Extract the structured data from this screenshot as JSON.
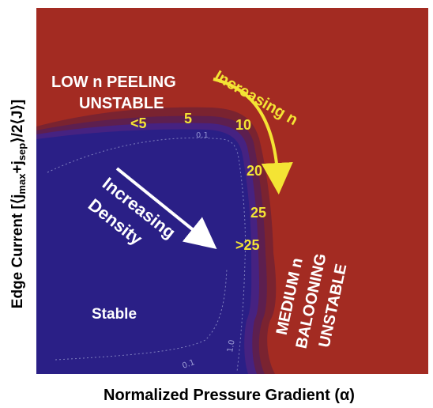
{
  "chart_data": {
    "type": "heatmap",
    "title": "",
    "xlabel": "Normalized Pressure Gradient (α)",
    "ylabel": {
      "prefix": "Edge Current [⟨j",
      "sub1": "max",
      "mid": "+j",
      "sub2": "sep",
      "suffix": "⟩/2⟨J⟩]"
    },
    "regions": [
      {
        "name": "LOW n PEELING UNSTABLE",
        "lines": [
          "LOW n PEELING",
          "UNSTABLE"
        ],
        "color": "#a32b22"
      },
      {
        "name": "MEDIUM n BALOONING UNSTABLE",
        "lines": [
          "MEDIUM n",
          "BALOONING",
          "UNSTABLE"
        ],
        "color": "#a32b22"
      },
      {
        "name": "Stable",
        "lines": [
          "Stable"
        ],
        "color": "#2a1f86"
      }
    ],
    "mode_number_labels": [
      "<5",
      "5",
      "10",
      "20",
      "25",
      ">25"
    ],
    "contour_labels": [
      "0.1",
      "1.0",
      "0.1"
    ],
    "annotations": [
      {
        "id": "increasing-n",
        "lines": [
          "Increasing n"
        ],
        "color": "#f4e434"
      },
      {
        "id": "increasing-density",
        "lines": [
          "Increasing",
          "Density"
        ],
        "color": "#ffffff"
      }
    ],
    "colors": {
      "unstable": "#a32b22",
      "stable": "#2a1f86",
      "mode_labels": "#f4e434",
      "region_text": "#ffffff"
    }
  }
}
